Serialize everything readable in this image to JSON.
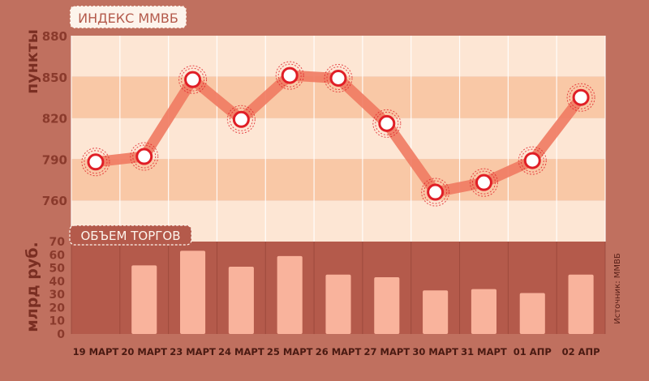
{
  "colors": {
    "frame": "#c0705f",
    "band_light": "#fde6d4",
    "band_dark": "#f9c8a6",
    "volume_bg": "#b45a4b",
    "line": "#f07a62",
    "marker": "#e01e26",
    "bar": "#f9b39c",
    "text": "#8a3a2c"
  },
  "chart_data": [
    {
      "type": "line",
      "title": "ИНДЕКС ММВБ",
      "ylabel": "пункты",
      "ylim": [
        730,
        880
      ],
      "yticks": [
        880,
        850,
        820,
        790,
        760
      ],
      "grid": true,
      "categories": [
        "19 МАРТ",
        "20 МАРТ",
        "23 МАРТ",
        "24 МАРТ",
        "25 МАРТ",
        "26 МАРТ",
        "27 МАРТ",
        "30 МАРТ",
        "31 МАРТ",
        "01 АПР",
        "02 АПР"
      ],
      "values": [
        788,
        792,
        848,
        819,
        851,
        849,
        816,
        766,
        773,
        789,
        835
      ]
    },
    {
      "type": "bar",
      "title": "ОБЪЕМ ТОРГОВ",
      "ylabel": "млрд руб.",
      "ylim": [
        0,
        70
      ],
      "yticks": [
        70,
        60,
        50,
        40,
        30,
        20,
        10,
        0
      ],
      "categories": [
        "19 МАРТ",
        "20 МАРТ",
        "23 МАРТ",
        "24 МАРТ",
        "25 МАРТ",
        "26 МАРТ",
        "27 МАРТ",
        "30 МАРТ",
        "31 МАРТ",
        "01 АПР",
        "02 АПР"
      ],
      "values": [
        0,
        52,
        63,
        51,
        59,
        45,
        43,
        33,
        34,
        31,
        45
      ]
    }
  ],
  "source_note": "Источник: ММВБ"
}
